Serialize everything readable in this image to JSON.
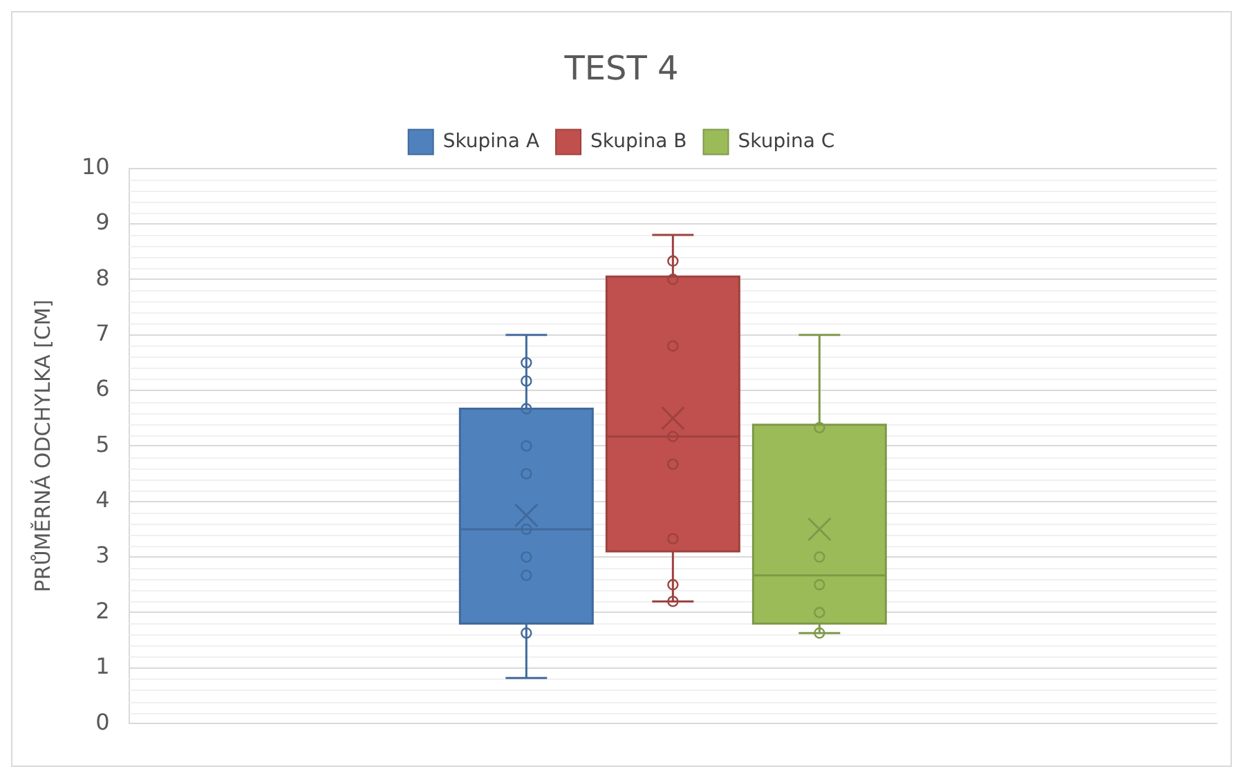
{
  "chart_data": {
    "type": "box",
    "title": "TEST 4",
    "ylabel": "PRŮMĚRNÁ ODCHYLKA [CM]",
    "categories": [
      null
    ],
    "ylim": [
      0,
      10
    ],
    "yticks": [
      0,
      1,
      2,
      3,
      4,
      5,
      6,
      7,
      8,
      9,
      10
    ],
    "grid": "y",
    "legend": "top",
    "marker": "circle",
    "series": [
      {
        "name": "Skupina A",
        "color": "#4f81bd",
        "boxes": [
          {
            "low": 0.82,
            "q1": 1.8,
            "median": 3.5,
            "q3": 5.67,
            "high": 7.0,
            "mean": 3.75
          }
        ]
      },
      {
        "name": "Skupina B",
        "color": "#c0504d",
        "boxes": [
          {
            "low": 2.2,
            "q1": 3.1,
            "median": 5.17,
            "q3": 8.05,
            "high": 8.8,
            "mean": 5.5
          }
        ]
      },
      {
        "name": "Skupina C",
        "color": "#9bbb59",
        "boxes": [
          {
            "low": 1.63,
            "q1": 1.8,
            "median": 2.67,
            "q3": 5.38,
            "high": 7.0,
            "mean": 3.5
          }
        ]
      },
      {
        "type": "scatter",
        "color": "#416a9b",
        "x": [
          null,
          null,
          null,
          null,
          null,
          null,
          null,
          null,
          null
        ],
        "values": [
          6.5,
          6.17,
          5.67,
          5.0,
          4.5,
          3.5,
          3.0,
          2.67,
          1.63
        ]
      },
      {
        "type": "scatter",
        "color": "#9d423f",
        "x": [
          null,
          null,
          null,
          null,
          null,
          null,
          null,
          null
        ],
        "values": [
          8.33,
          8.0,
          6.8,
          5.17,
          4.67,
          3.33,
          2.5,
          2.2
        ]
      },
      {
        "type": "scatter",
        "color": "#7f9949",
        "x": [
          null,
          null,
          null,
          null,
          null
        ],
        "values": [
          5.33,
          3.0,
          2.5,
          2.0,
          1.63
        ]
      }
    ]
  }
}
